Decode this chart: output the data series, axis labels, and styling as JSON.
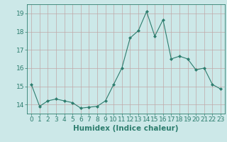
{
  "x": [
    0,
    1,
    2,
    3,
    4,
    5,
    6,
    7,
    8,
    9,
    10,
    11,
    12,
    13,
    14,
    15,
    16,
    17,
    18,
    19,
    20,
    21,
    22,
    23
  ],
  "y": [
    15.1,
    13.9,
    14.2,
    14.3,
    14.2,
    14.1,
    13.8,
    13.85,
    13.9,
    14.2,
    15.1,
    16.0,
    17.65,
    18.05,
    19.1,
    17.75,
    18.65,
    16.5,
    16.65,
    16.5,
    15.9,
    16.0,
    15.1,
    14.85
  ],
  "xlabel": "Humidex (Indice chaleur)",
  "ylim": [
    13.5,
    19.5
  ],
  "xlim": [
    -0.5,
    23.5
  ],
  "yticks": [
    14,
    15,
    16,
    17,
    18,
    19
  ],
  "xticks": [
    0,
    1,
    2,
    3,
    4,
    5,
    6,
    7,
    8,
    9,
    10,
    11,
    12,
    13,
    14,
    15,
    16,
    17,
    18,
    19,
    20,
    21,
    22,
    23
  ],
  "line_color": "#2d7d6e",
  "marker_color": "#2d7d6e",
  "bg_color": "#cce8e8",
  "grid_color": "#c0a8a8",
  "axis_color": "#2d7d6e",
  "tick_label_color": "#2d7d6e",
  "xlabel_color": "#2d7d6e",
  "xlabel_fontsize": 7.5,
  "tick_fontsize": 6.5
}
